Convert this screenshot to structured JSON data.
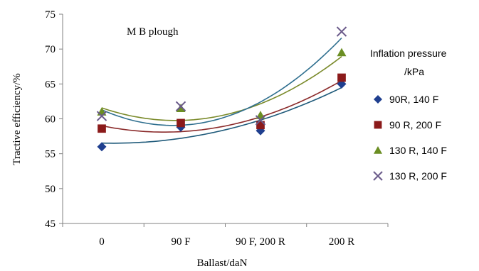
{
  "chart_data": {
    "type": "scatter",
    "title": "",
    "annotation": "M B plough",
    "xlabel": "Ballast/daN",
    "ylabel": "Tractive efficiency/%",
    "categories": [
      "0",
      "90 F",
      "90 F, 200 R",
      "200 R"
    ],
    "ylim": [
      45,
      75
    ],
    "yticks": [
      "45",
      "50",
      "55",
      "60",
      "65",
      "70",
      "75"
    ],
    "grid": false,
    "legend_position": "right",
    "legend_title_line1": "Inflation pressure",
    "legend_title_line2": "/kPa",
    "trendline": "polynomial order 2",
    "series": [
      {
        "name": "90R, 140 F",
        "marker": "diamond",
        "color": "#1f3f8f",
        "line_color": "#1f5a7a",
        "values": [
          56.0,
          58.8,
          58.3,
          65.0
        ]
      },
      {
        "name": "90 R, 200 F",
        "marker": "square",
        "color": "#8b1a1a",
        "line_color": "#8b2b2b",
        "values": [
          58.6,
          59.4,
          59.1,
          65.9
        ]
      },
      {
        "name": "130 R, 140 F",
        "marker": "triangle",
        "color": "#6b8e23",
        "line_color": "#7a8a2a",
        "values": [
          61.0,
          61.5,
          60.5,
          69.5
        ]
      },
      {
        "name": "130 R, 200 F",
        "marker": "x",
        "color": "#6a5a8a",
        "line_color": "#2f6f8f",
        "values": [
          60.4,
          61.8,
          59.8,
          72.5
        ]
      }
    ]
  }
}
